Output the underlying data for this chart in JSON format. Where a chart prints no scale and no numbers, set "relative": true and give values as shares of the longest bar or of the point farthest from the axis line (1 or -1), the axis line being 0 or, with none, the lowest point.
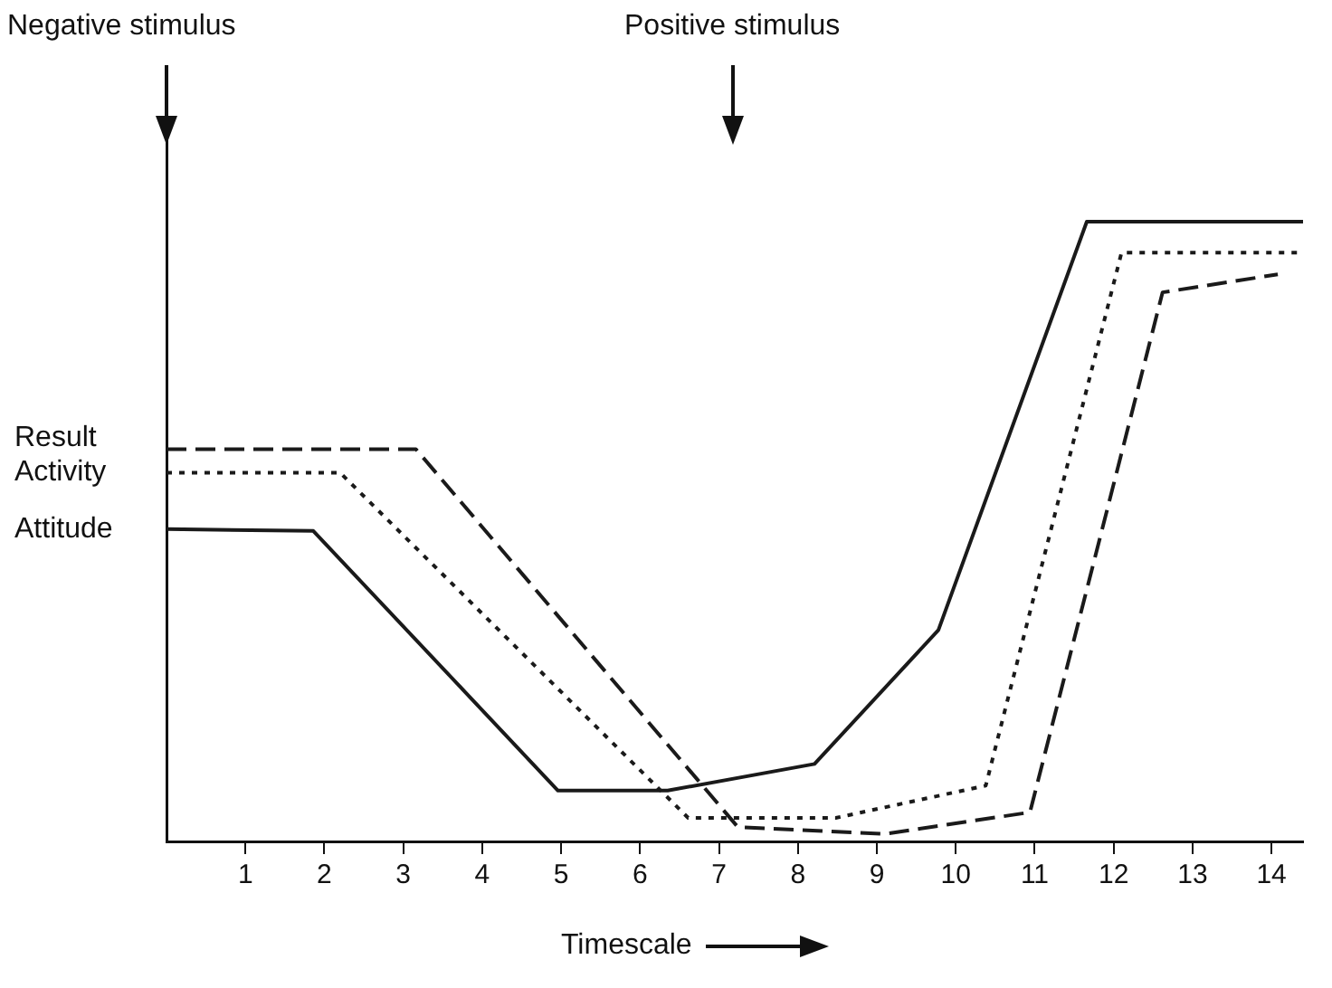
{
  "chart_data": {
    "type": "line",
    "relative": true,
    "xlabel": "Timescale",
    "xlim": [
      0,
      14.4
    ],
    "xticks": [
      1,
      2,
      3,
      4,
      5,
      6,
      7,
      8,
      9,
      10,
      11,
      12,
      13,
      14
    ],
    "grid": false,
    "legend": false,
    "marker": "none",
    "annotations": [
      "Negative stimulus",
      "Positive stimulus"
    ],
    "series": [
      {
        "name": "Result",
        "color": "#1a1a1a",
        "line_style": "dashed",
        "x": [
          0,
          3.16,
          7.24,
          9.1,
          10.94,
          12.62,
          14.08
        ],
        "values": [
          0.633,
          0.633,
          0.023,
          0.012,
          0.047,
          0.886,
          0.915
        ]
      },
      {
        "name": "Activity",
        "color": "#1a1a1a",
        "line_style": "dotted",
        "x": [
          0,
          2.2,
          6.61,
          8.48,
          10.38,
          12.1,
          14.4
        ],
        "values": [
          0.595,
          0.595,
          0.038,
          0.038,
          0.09,
          0.95,
          0.95
        ]
      },
      {
        "name": "Attitude",
        "color": "#1a1a1a",
        "line_style": "solid",
        "x": [
          0,
          1.86,
          4.96,
          6.35,
          8.21,
          9.78,
          11.66,
          14.4
        ],
        "values": [
          0.504,
          0.501,
          0.082,
          0.082,
          0.125,
          0.341,
          1,
          1
        ]
      }
    ]
  }
}
